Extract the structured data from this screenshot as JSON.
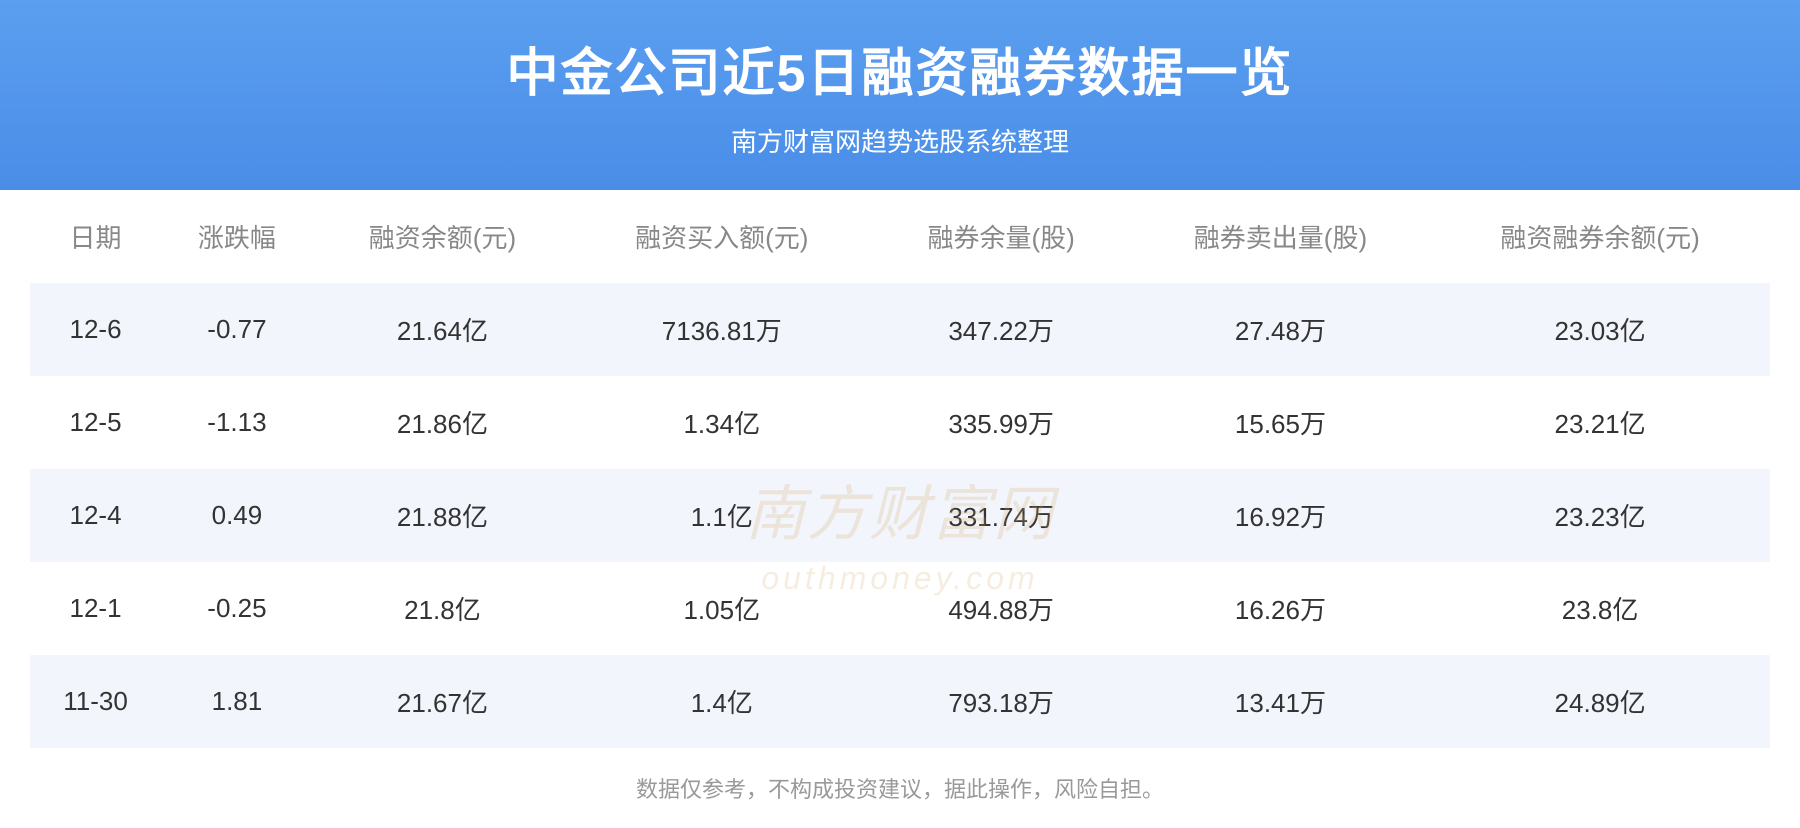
{
  "header": {
    "title": "中金公司近5日融资融券数据一览",
    "subtitle": "南方财富网趋势选股系统整理",
    "bg_gradient_start": "#5b9ff0",
    "bg_gradient_end": "#4a8de8",
    "title_color": "#ffffff",
    "title_fontsize": 52,
    "subtitle_fontsize": 26
  },
  "table": {
    "header_color": "#888888",
    "cell_color": "#333333",
    "row_alt_bg": "#f2f6fc",
    "row_bg": "#ffffff",
    "fontsize": 26,
    "columns": [
      "日期",
      "涨跌幅",
      "融资余额(元)",
      "融资买入额(元)",
      "融券余量(股)",
      "融券卖出量(股)",
      "融资融券余额(元)"
    ],
    "rows": [
      [
        "12-6",
        "-0.77",
        "21.64亿",
        "7136.81万",
        "347.22万",
        "27.48万",
        "23.03亿"
      ],
      [
        "12-5",
        "-1.13",
        "21.86亿",
        "1.34亿",
        "335.99万",
        "15.65万",
        "23.21亿"
      ],
      [
        "12-4",
        "0.49",
        "21.88亿",
        "1.1亿",
        "331.74万",
        "16.92万",
        "23.23亿"
      ],
      [
        "12-1",
        "-0.25",
        "21.8亿",
        "1.05亿",
        "494.88万",
        "16.26万",
        "23.8亿"
      ],
      [
        "11-30",
        "1.81",
        "21.67亿",
        "1.4亿",
        "793.18万",
        "13.41万",
        "24.89亿"
      ]
    ]
  },
  "footer": {
    "note": "数据仅参考，不构成投资建议，据此操作，风险自担。",
    "color": "#999999",
    "fontsize": 22
  },
  "watermark": {
    "text_main": "南方财富网",
    "text_sub": "outhmoney.com",
    "color": "rgba(212, 165, 100, 0.22)"
  }
}
